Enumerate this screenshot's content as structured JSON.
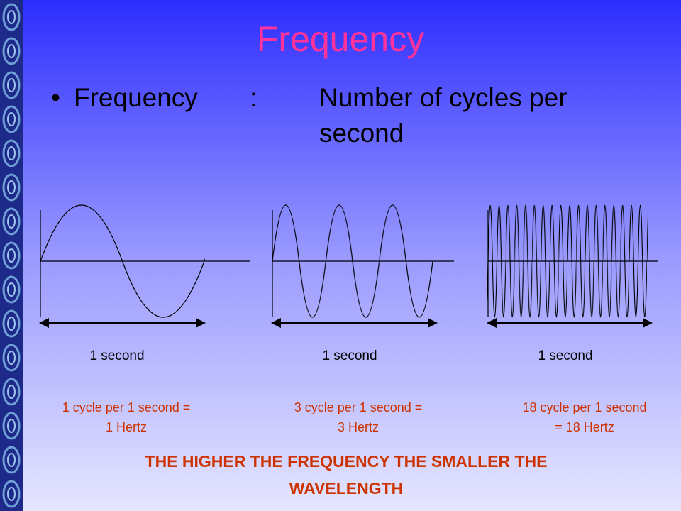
{
  "title": "Frequency",
  "bullet": {
    "term": "Frequency",
    "separator": ":",
    "definition_lines": [
      "Number of cycles per",
      "second"
    ]
  },
  "panels": [
    {
      "duration_label": "1 second",
      "caption_lines": [
        "1 cycle per 1 second =",
        "1 Hertz"
      ]
    },
    {
      "duration_label": "1 second",
      "caption_lines": [
        "3 cycle per 1 second =",
        "3 Hertz"
      ]
    },
    {
      "duration_label": "1 second",
      "caption_lines": [
        "18 cycle per 1 second",
        "= 18 Hertz"
      ]
    }
  ],
  "footer_lines": [
    "THE HIGHER THE FREQUENCY THE SMALLER THE",
    "WAVELENGTH"
  ]
}
